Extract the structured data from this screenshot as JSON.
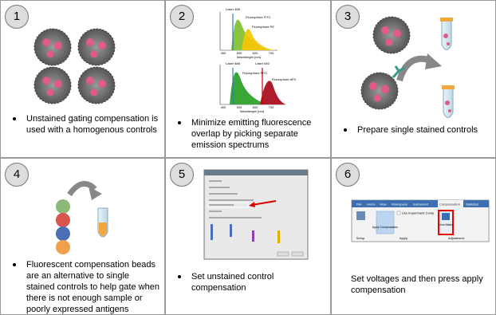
{
  "panels": [
    {
      "number": "1",
      "caption": "Unstained gating compensation is used with a homogenous controls"
    },
    {
      "number": "2",
      "caption": "Minimize emitting fluorescence overlap by picking separate emission spectrums",
      "top_chart": {
        "lasers": [
          "Laser 488"
        ],
        "fluorophores": [
          "Fluorophore FITC",
          "Fluorophore PE"
        ],
        "x_ticks": [
          "400",
          "500",
          "600",
          "700"
        ],
        "x_label": "Wavelength (nm)"
      },
      "bottom_chart": {
        "lasers": [
          "Laser 488",
          "Laser 640"
        ],
        "fluorophores": [
          "Fluorophore FITC",
          "Fluorophore APC"
        ],
        "x_ticks": [
          "400",
          "500",
          "600",
          "700"
        ],
        "x_label": "Wavelength (nm)"
      }
    },
    {
      "number": "3",
      "caption": "Prepare single stained controls"
    },
    {
      "number": "4",
      "caption": "Fluorescent compensation beads are an alternative to single stained controls to help gate when there is not enough sample or poorly expressed antigens"
    },
    {
      "number": "5",
      "caption": "Set unstained control compensation"
    },
    {
      "number": "6",
      "caption": "Set voltages and then press apply compensation",
      "ribbon": {
        "tabs": [
          "File",
          "Home",
          "View",
          "Workspace",
          "Instrument",
          "Compensation",
          "Statistics"
        ],
        "checkbox": "Use Experiment Comp",
        "buttons": [
          "Apply Compensation",
          "View Matrix"
        ],
        "groups": [
          "Setup",
          "Apply",
          "Adjustment"
        ]
      }
    }
  ]
}
